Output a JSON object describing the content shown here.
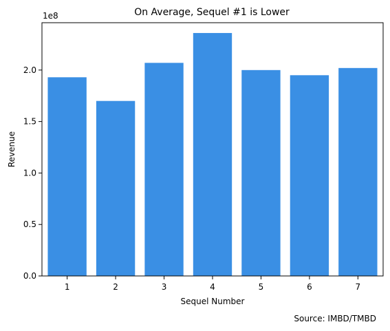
{
  "chart_data": {
    "type": "bar",
    "title": "On Average, Sequel #1 is Lower",
    "xlabel": "Sequel Number",
    "ylabel": "Revenue",
    "y_scale_label": "1e8",
    "categories": [
      "1",
      "2",
      "3",
      "4",
      "5",
      "6",
      "7"
    ],
    "values": [
      193000000,
      170000000,
      207000000,
      236000000,
      200000000,
      195000000,
      202000000
    ],
    "ylim": [
      0,
      246000000
    ],
    "y_ticks": [
      0,
      50000000,
      100000000,
      150000000,
      200000000
    ],
    "y_tick_labels": [
      "0.0",
      "0.5",
      "1.0",
      "1.5",
      "2.0"
    ],
    "bar_color": "#3a8fe4",
    "grid": false,
    "source_note": "Source: IMBD/TMBD"
  }
}
